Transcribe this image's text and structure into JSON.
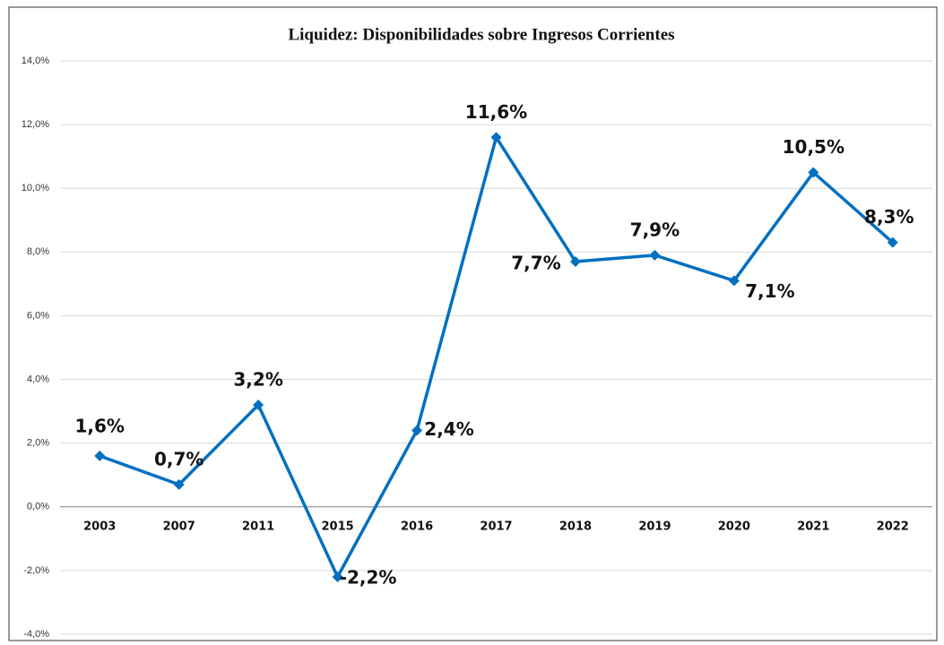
{
  "chart_data": {
    "type": "line",
    "title": "Liquidez: Disponibilidades sobre Ingresos Corrientes",
    "categories": [
      "2003",
      "2007",
      "2011",
      "2015",
      "2016",
      "2017",
      "2018",
      "2019",
      "2020",
      "2021",
      "2022"
    ],
    "series": [
      {
        "name": "Liquidez",
        "color": "#0070c0",
        "values": [
          1.6,
          0.7,
          3.2,
          -2.2,
          2.4,
          11.6,
          7.7,
          7.9,
          7.1,
          10.5,
          8.3
        ],
        "value_labels": [
          "1,6%",
          "0,7%",
          "3,2%",
          "-2,2%",
          "2,4%",
          "11,6%",
          "7,7%",
          "7,9%",
          "7,1%",
          "10,5%",
          "8,3%"
        ]
      }
    ],
    "ylim": [
      -4,
      14
    ],
    "yticks": [
      {
        "value": -4,
        "label": "-4,0%"
      },
      {
        "value": -2,
        "label": "-2,0%"
      },
      {
        "value": 0,
        "label": "0,0%"
      },
      {
        "value": 2,
        "label": "2,0%"
      },
      {
        "value": 4,
        "label": "4,0%"
      },
      {
        "value": 6,
        "label": "6,0%"
      },
      {
        "value": 8,
        "label": "8,0%"
      },
      {
        "value": 10,
        "label": "10,0%"
      },
      {
        "value": 12,
        "label": "12,0%"
      },
      {
        "value": 14,
        "label": "14,0%"
      }
    ],
    "grid": true
  }
}
